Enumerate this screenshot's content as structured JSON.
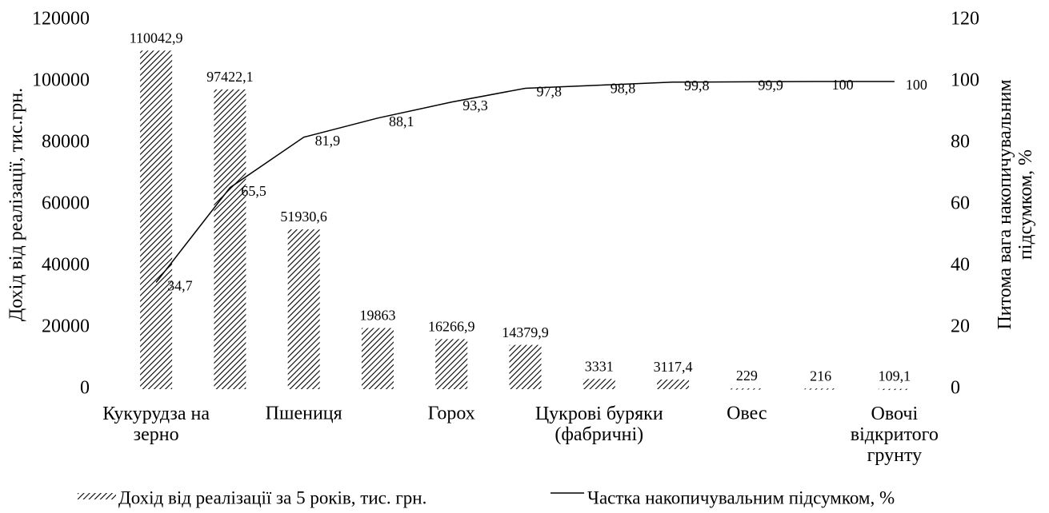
{
  "chart_data": {
    "type": "bar",
    "categories": [
      "Кукурудза на\nзерно",
      null,
      "Пшениця",
      null,
      "Горох",
      null,
      "Цукрові буряки\n(фабричні)",
      null,
      "Овес",
      null,
      "Овочі\nвідкритого\nгрунту"
    ],
    "y_label": "Дохід від реалізації, тис.грн.",
    "y2_label": "Питома вага накопичувальним\nпідсумком, %",
    "ylim": [
      0,
      120000
    ],
    "yticks": [
      0,
      20000,
      40000,
      60000,
      80000,
      100000,
      120000
    ],
    "y2lim": [
      0,
      120
    ],
    "y2ticks": [
      0,
      20,
      40,
      60,
      80,
      100,
      120
    ],
    "series": [
      {
        "name": "Дохід від реалізації за 5 років, тис. грн.",
        "type": "bar",
        "color": "#000000",
        "values": [
          110042.9,
          97422.1,
          51930.6,
          19863,
          16266.9,
          14379.9,
          3331,
          3117.4,
          229,
          216,
          109.1
        ],
        "value_labels": [
          "110042,9",
          "97422,1",
          "51930,6",
          "19863",
          "16266,9",
          "14379,9",
          "3331",
          "3117,4",
          "229",
          "216",
          "109,1"
        ]
      },
      {
        "name": "Частка  накопичувальним підсумком, %",
        "type": "line",
        "axis": "y2",
        "color": "#000000",
        "values": [
          34.7,
          65.5,
          81.9,
          88.1,
          93.3,
          97.8,
          98.8,
          99.8,
          99.9,
          100,
          100
        ],
        "value_labels": [
          "34,7",
          "65,5",
          "81,9",
          "88,1",
          "93,3",
          "97,8",
          "98,8",
          "99,8",
          "99,9",
          "100",
          "100"
        ]
      }
    ],
    "legend": "bottom",
    "grid": false
  }
}
